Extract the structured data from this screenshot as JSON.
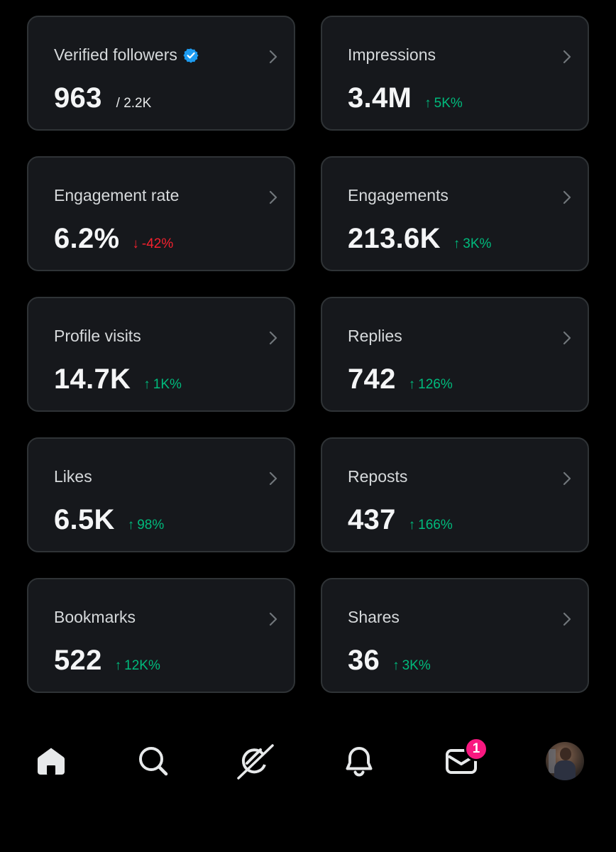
{
  "cards": [
    {
      "label": "Verified followers",
      "value": "963",
      "total": "/ 2.2K"
    },
    {
      "label": "Impressions",
      "value": "3.4M",
      "change": "5K%",
      "direction": "up"
    },
    {
      "label": "Engagement rate",
      "value": "6.2%",
      "change": "-42%",
      "direction": "down"
    },
    {
      "label": "Engagements",
      "value": "213.6K",
      "change": "3K%",
      "direction": "up"
    },
    {
      "label": "Profile visits",
      "value": "14.7K",
      "change": "1K%",
      "direction": "up"
    },
    {
      "label": "Replies",
      "value": "742",
      "change": "126%",
      "direction": "up"
    },
    {
      "label": "Likes",
      "value": "6.5K",
      "change": "98%",
      "direction": "up"
    },
    {
      "label": "Reposts",
      "value": "437",
      "change": "166%",
      "direction": "up"
    },
    {
      "label": "Bookmarks",
      "value": "522",
      "change": "12K%",
      "direction": "up"
    },
    {
      "label": "Shares",
      "value": "36",
      "change": "3K%",
      "direction": "up"
    }
  ],
  "arrows": {
    "up": "↑",
    "down": "↓"
  },
  "nav": {
    "home_icon": "home-icon",
    "search_icon": "search-icon",
    "grok_icon": "grok-icon",
    "notifications_icon": "bell-icon",
    "messages_icon": "mail-icon",
    "messages_badge": "1",
    "profile": "avatar"
  },
  "colors": {
    "background": "#000000",
    "card": "#16181c",
    "card_border": "#2f3336",
    "positive": "#00ba7c",
    "negative": "#f4212e",
    "verified": "#1d9bf0",
    "badge": "#f91880"
  }
}
